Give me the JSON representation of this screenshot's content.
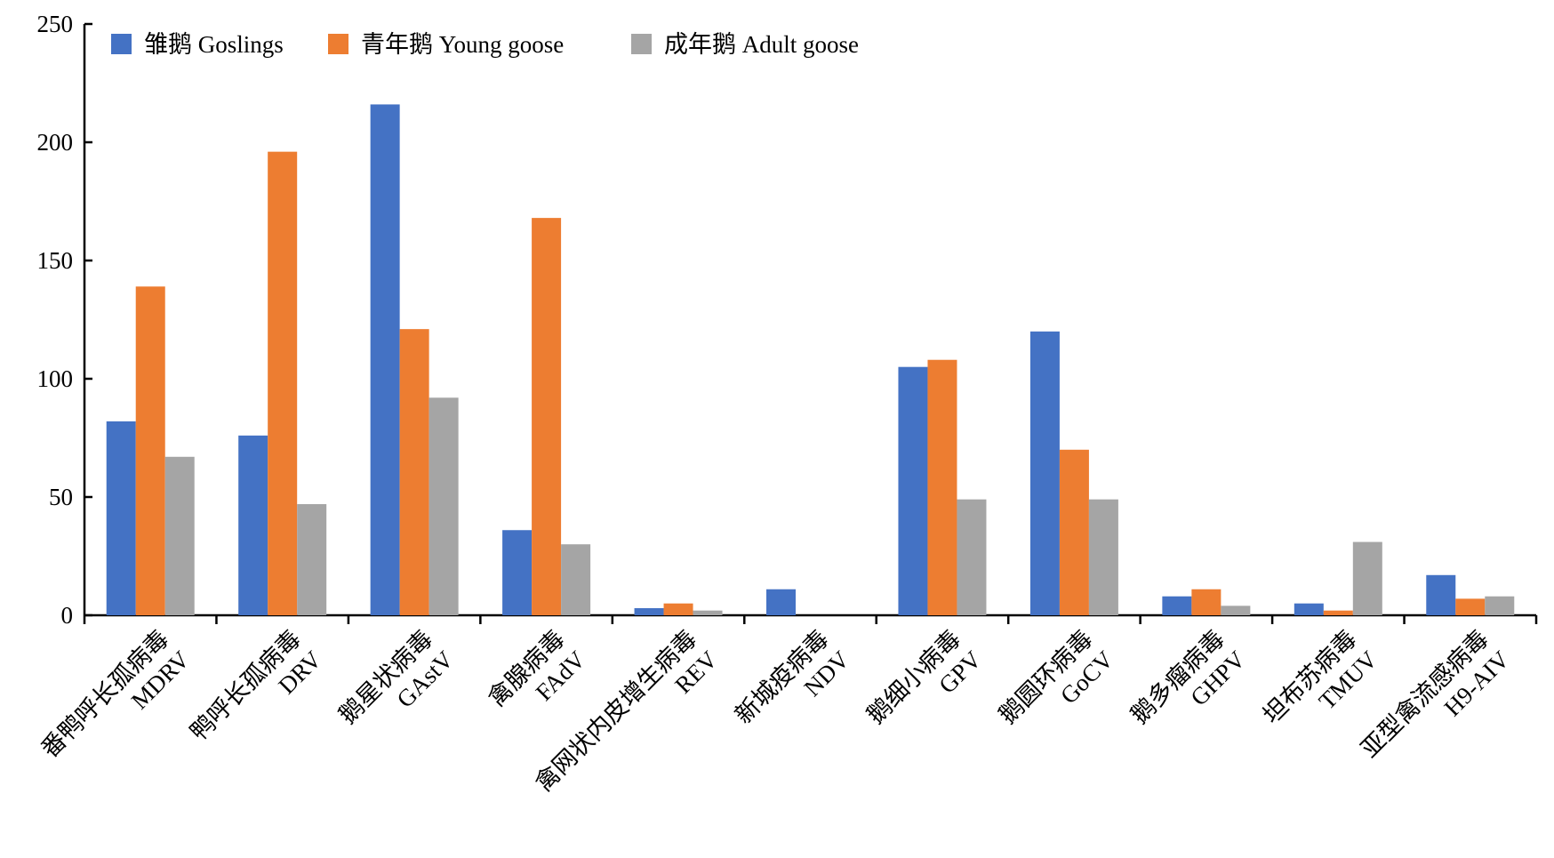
{
  "chart_data": {
    "type": "bar",
    "title": "",
    "xlabel": "",
    "ylabel": "",
    "ylim": [
      0,
      250
    ],
    "yticks": [
      0,
      50,
      100,
      150,
      200,
      250
    ],
    "grid": false,
    "legend_position": "top-left",
    "categories": [
      {
        "cn": "番鸭呼长孤病毒",
        "en": "MDRV"
      },
      {
        "cn": "鸭呼长孤病毒",
        "en": "DRV"
      },
      {
        "cn": "鹅星状病毒",
        "en": "GAstV"
      },
      {
        "cn": "禽腺病毒",
        "en": "FAdV"
      },
      {
        "cn": "禽网状内皮增生病毒",
        "en": "REV"
      },
      {
        "cn": "新城疫病毒",
        "en": "NDV"
      },
      {
        "cn": "鹅细小病毒",
        "en": "GPV"
      },
      {
        "cn": "鹅圆环病毒",
        "en": "GoCV"
      },
      {
        "cn": "鹅多瘤病毒",
        "en": "GHPV"
      },
      {
        "cn": "坦布苏病毒",
        "en": "TMUV"
      },
      {
        "cn": "亚型禽流感病毒",
        "en": "H9-AIV"
      }
    ],
    "series": [
      {
        "name": "雏鹅 Goslings",
        "color": "#4472C4",
        "values": [
          82,
          76,
          216,
          36,
          3,
          11,
          105,
          120,
          8,
          5,
          17
        ]
      },
      {
        "name": "青年鹅 Young goose",
        "color": "#ED7D31",
        "values": [
          139,
          196,
          121,
          168,
          5,
          0,
          108,
          70,
          11,
          2,
          7
        ]
      },
      {
        "name": "成年鹅 Adult goose",
        "color": "#A5A5A5",
        "values": [
          67,
          47,
          92,
          30,
          2,
          0,
          49,
          49,
          4,
          31,
          8
        ]
      }
    ]
  }
}
